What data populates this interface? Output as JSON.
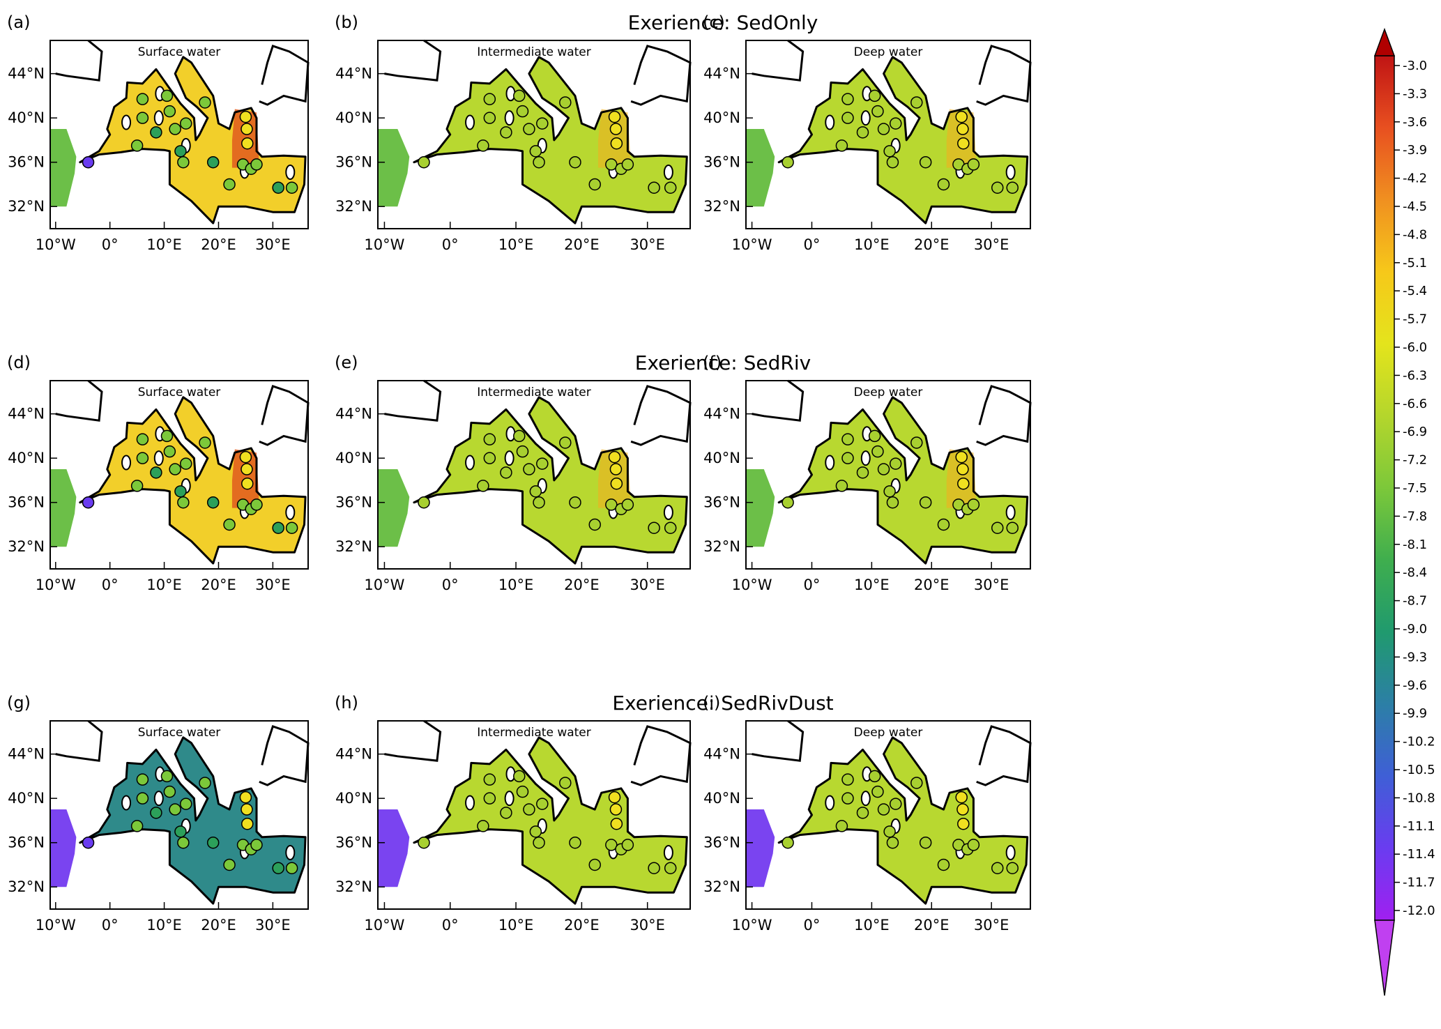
{
  "colors": {
    "ocean_gradient": [
      "#a020f0",
      "#6a3cf0",
      "#3f5fd6",
      "#2c7fa6",
      "#209a6e",
      "#3fae4e",
      "#7cc83a",
      "#b4d62c",
      "#e4e41c",
      "#f6c81a",
      "#f09020",
      "#e85020",
      "#c01414"
    ],
    "land": "#ffffff",
    "coast": "#000000"
  },
  "experiments": [
    {
      "title": "Exerience: SedOnly"
    },
    {
      "title": "Exerience: SedRiv"
    },
    {
      "title": "Exerience: SedRivDust"
    }
  ],
  "panels": [
    {
      "label": "(a)",
      "subtitle": "Surface water",
      "row": 0,
      "col": 0
    },
    {
      "label": "(b)",
      "subtitle": "Intermediate water",
      "row": 0,
      "col": 1
    },
    {
      "label": "(c)",
      "subtitle": "Deep water",
      "row": 0,
      "col": 2
    },
    {
      "label": "(d)",
      "subtitle": "Surface water",
      "row": 1,
      "col": 0
    },
    {
      "label": "(e)",
      "subtitle": "Intermediate water",
      "row": 1,
      "col": 1
    },
    {
      "label": "(f)",
      "subtitle": "Deep water",
      "row": 1,
      "col": 2
    },
    {
      "label": "(g)",
      "subtitle": "Surface water",
      "row": 2,
      "col": 0
    },
    {
      "label": "(h)",
      "subtitle": "Intermediate water",
      "row": 2,
      "col": 1
    },
    {
      "label": "(i)",
      "subtitle": "Deep water",
      "row": 2,
      "col": 2
    }
  ],
  "axes": {
    "lon_ticks": [
      {
        "value": -10,
        "label": "10°W"
      },
      {
        "value": 0,
        "label": "0°"
      },
      {
        "value": 10,
        "label": "10°E"
      },
      {
        "value": 20,
        "label": "20°E"
      },
      {
        "value": 30,
        "label": "30°E"
      }
    ],
    "lat_ticks": [
      {
        "value": 32,
        "label": "32°N"
      },
      {
        "value": 36,
        "label": "36°N"
      },
      {
        "value": 40,
        "label": "40°N"
      },
      {
        "value": 44,
        "label": "44°N"
      }
    ],
    "lon_range": [
      -11,
      36.5
    ],
    "lat_range": [
      30,
      47
    ]
  },
  "colorbar": {
    "labels": [
      "-3.0",
      "-3.3",
      "-3.6",
      "-3.9",
      "-4.2",
      "-4.5",
      "-4.8",
      "-5.1",
      "-5.4",
      "-5.7",
      "-6.0",
      "-6.3",
      "-6.6",
      "-6.9",
      "-7.2",
      "-7.5",
      "-7.8",
      "-8.1",
      "-8.4",
      "-8.7",
      "-9.0",
      "-9.3",
      "-9.6",
      "-9.9",
      "-10.2",
      "-10.5",
      "-10.8",
      "-11.1",
      "-11.4",
      "-11.7",
      "-12.0"
    ],
    "min": -12.0,
    "max": -3.0
  }
}
